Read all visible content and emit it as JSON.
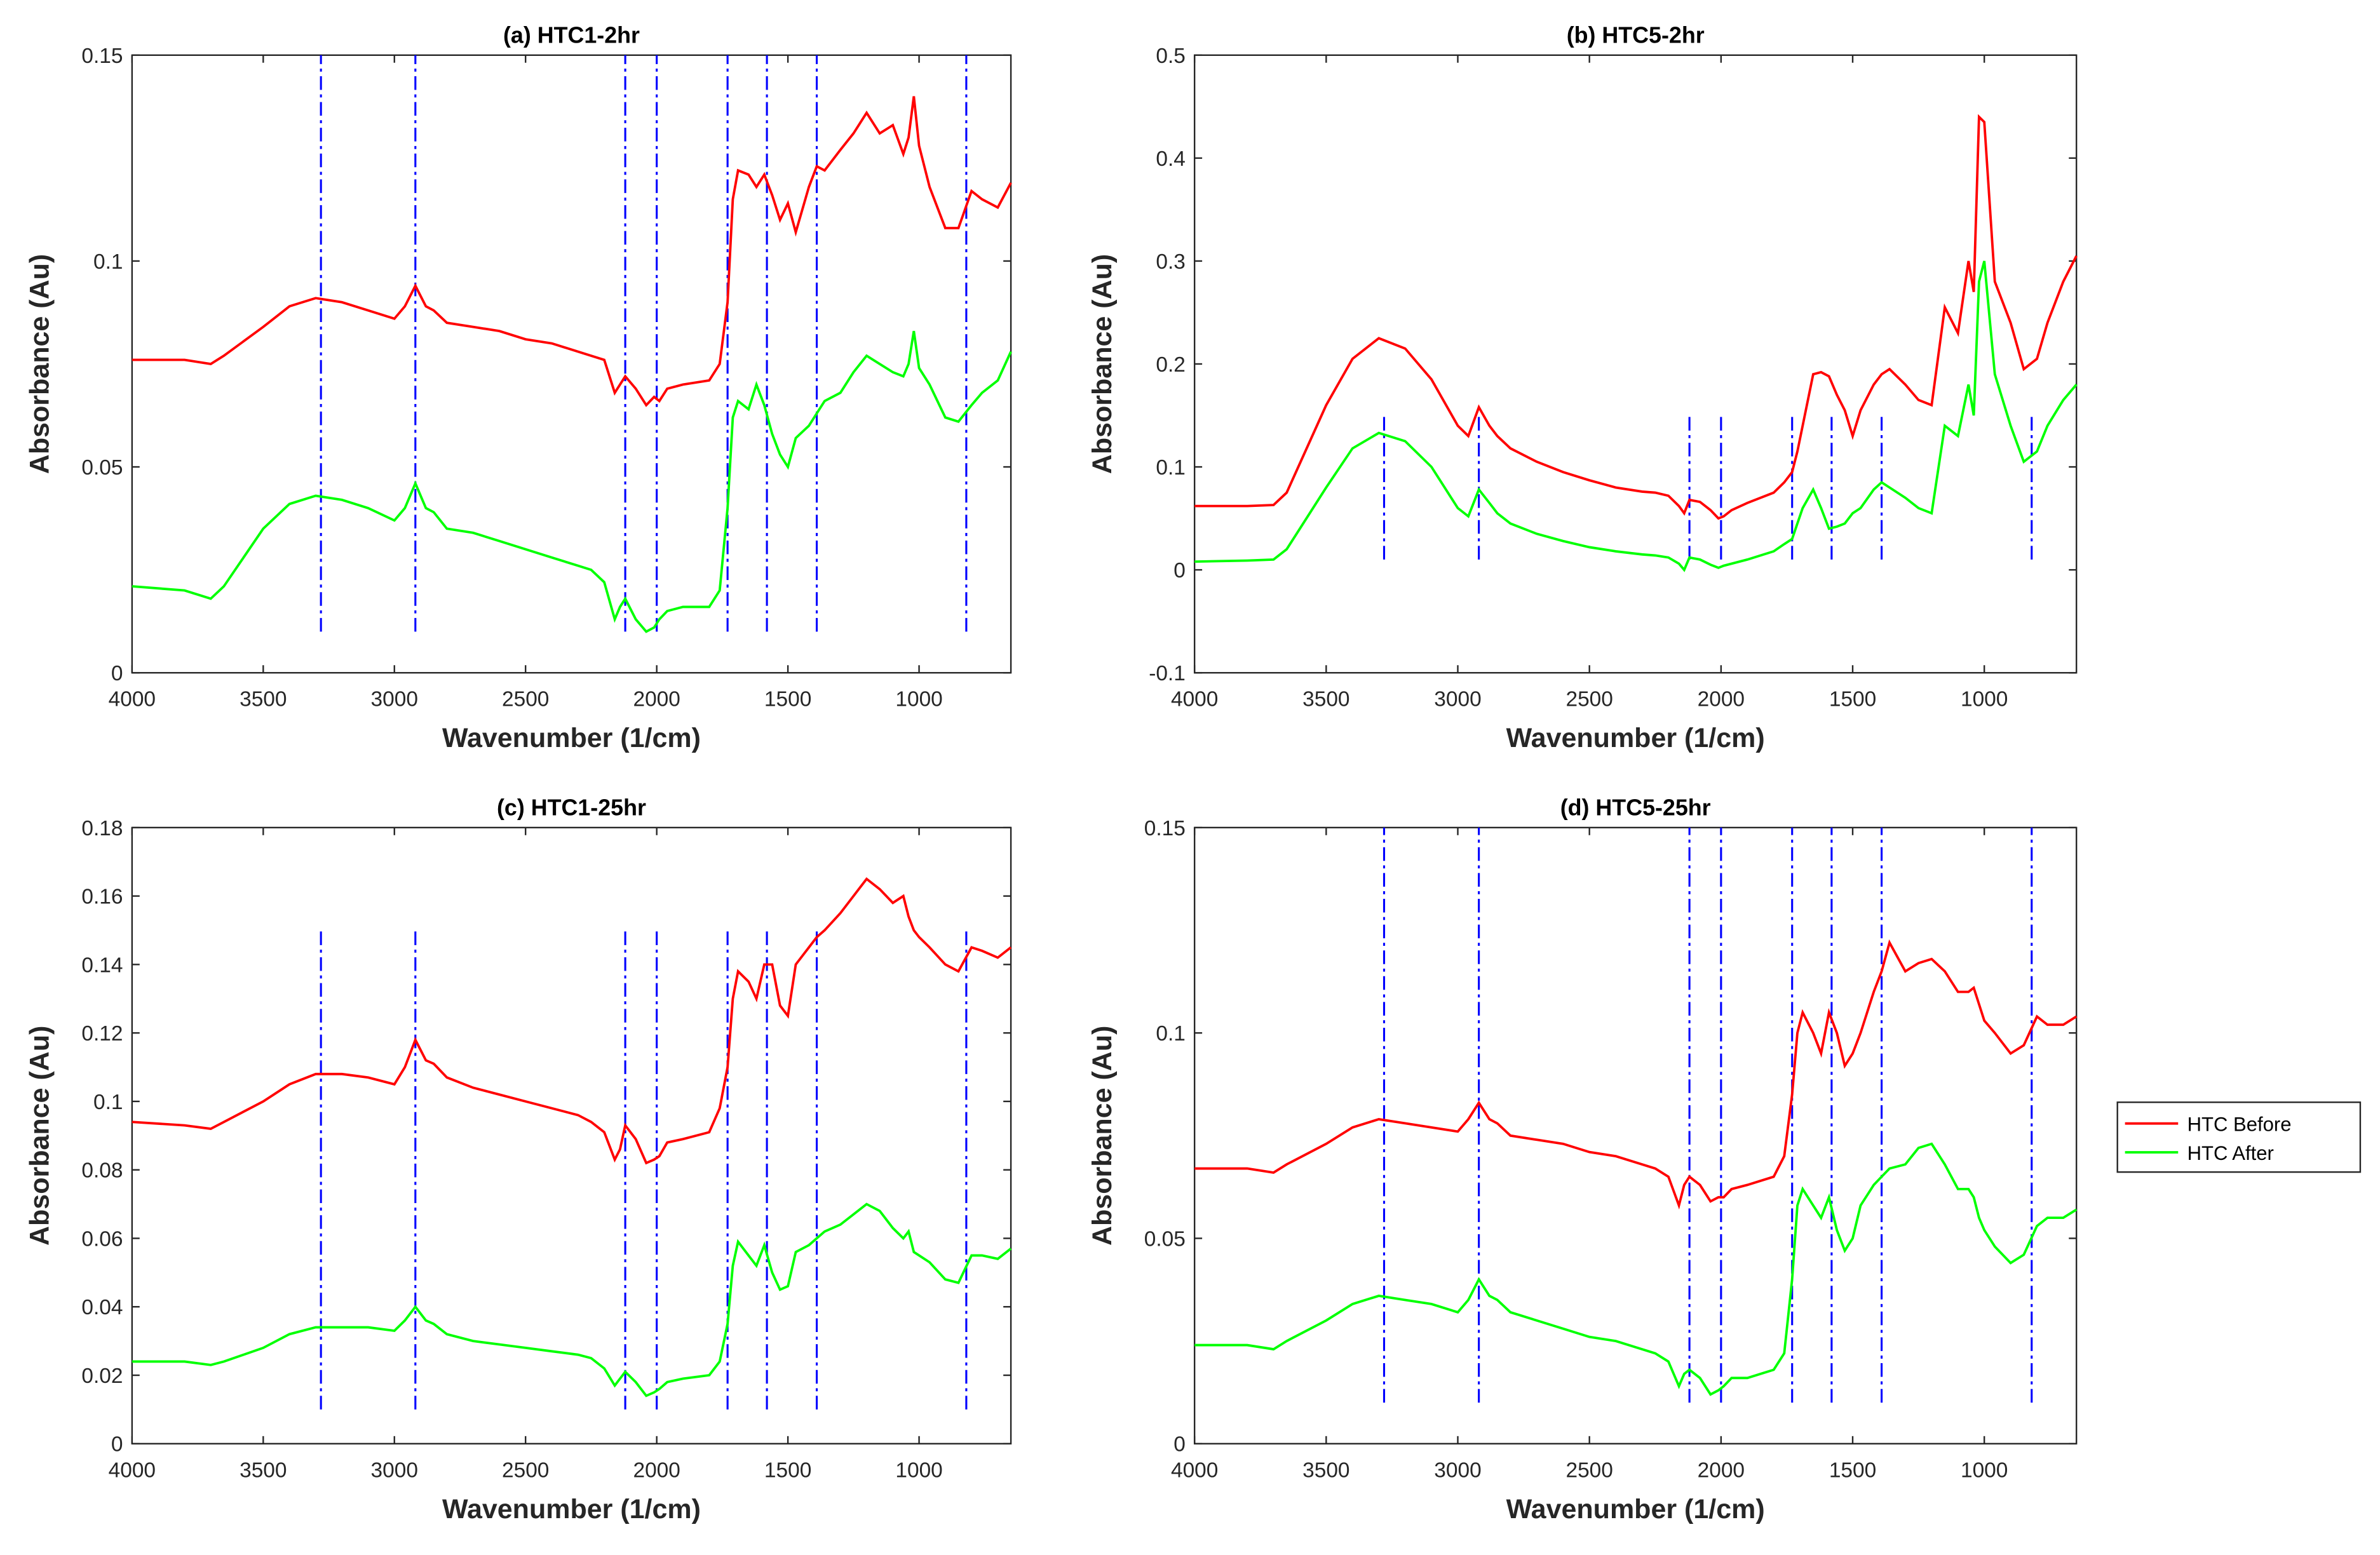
{
  "chart_data": [
    {
      "type": "line",
      "title": "(a) HTC1-2hr",
      "x_label": "Wavenumber (1/cm)",
      "y_label": "Absorbance (Au)",
      "x": [
        4000,
        3800,
        3700,
        3650,
        3500,
        3400,
        3300,
        3200,
        3100,
        3000,
        2960,
        2920,
        2880,
        2850,
        2800,
        2700,
        2600,
        2500,
        2400,
        2300,
        2250,
        2200,
        2160,
        2140,
        2120,
        2080,
        2040,
        2010,
        1990,
        1960,
        1900,
        1800,
        1760,
        1730,
        1710,
        1690,
        1650,
        1620,
        1590,
        1560,
        1530,
        1500,
        1470,
        1420,
        1390,
        1360,
        1300,
        1250,
        1200,
        1150,
        1100,
        1060,
        1040,
        1020,
        1000,
        960,
        900,
        850,
        800,
        760,
        700,
        650
      ],
      "series": [
        {
          "color": "#ff0000",
          "values": [
            0.076,
            0.076,
            0.075,
            0.077,
            0.084,
            0.089,
            0.091,
            0.09,
            0.088,
            0.086,
            0.089,
            0.094,
            0.089,
            0.088,
            0.085,
            0.084,
            0.083,
            0.081,
            0.08,
            0.078,
            0.077,
            0.076,
            0.068,
            0.07,
            0.072,
            0.069,
            0.065,
            0.067,
            0.066,
            0.069,
            0.07,
            0.071,
            0.075,
            0.09,
            0.115,
            0.122,
            0.121,
            0.118,
            0.121,
            0.116,
            0.11,
            0.114,
            0.107,
            0.118,
            0.123,
            0.122,
            0.127,
            0.131,
            0.136,
            0.131,
            0.133,
            0.126,
            0.13,
            0.14,
            0.128,
            0.118,
            0.108,
            0.108,
            0.117,
            0.115,
            0.113,
            0.119
          ]
        },
        {
          "color": "#00ff00",
          "values": [
            0.021,
            0.02,
            0.018,
            0.021,
            0.035,
            0.041,
            0.043,
            0.042,
            0.04,
            0.037,
            0.04,
            0.046,
            0.04,
            0.039,
            0.035,
            0.034,
            0.032,
            0.03,
            0.028,
            0.026,
            0.025,
            0.022,
            0.013,
            0.016,
            0.018,
            0.013,
            0.01,
            0.011,
            0.013,
            0.015,
            0.016,
            0.016,
            0.02,
            0.04,
            0.062,
            0.066,
            0.064,
            0.07,
            0.065,
            0.058,
            0.053,
            0.05,
            0.057,
            0.06,
            0.063,
            0.066,
            0.068,
            0.073,
            0.077,
            0.075,
            0.073,
            0.072,
            0.075,
            0.083,
            0.074,
            0.07,
            0.062,
            0.061,
            0.065,
            0.068,
            0.071,
            0.078
          ]
        }
      ],
      "vlines": [
        3280,
        2920,
        2120,
        2000,
        1730,
        1580,
        1390,
        820
      ],
      "vline_range": [
        0.01,
        0.15
      ],
      "vline_color": "#0000ff",
      "xlim": [
        4000,
        650
      ],
      "xticks": [
        4000,
        3500,
        3000,
        2500,
        2000,
        1500,
        1000
      ],
      "ylim": [
        0,
        0.15
      ],
      "yticks": [
        0,
        0.05,
        0.1,
        0.15
      ],
      "grid": false
    },
    {
      "type": "line",
      "title": "(b) HTC5-2hr",
      "x_label": "Wavenumber (1/cm)",
      "y_label": "Absorbance (Au)",
      "x": [
        4000,
        3800,
        3700,
        3650,
        3500,
        3400,
        3300,
        3200,
        3100,
        3000,
        2960,
        2920,
        2880,
        2850,
        2800,
        2700,
        2600,
        2500,
        2400,
        2300,
        2250,
        2200,
        2160,
        2140,
        2120,
        2080,
        2040,
        2010,
        1990,
        1960,
        1900,
        1800,
        1760,
        1730,
        1710,
        1690,
        1650,
        1620,
        1590,
        1560,
        1530,
        1500,
        1470,
        1420,
        1390,
        1360,
        1300,
        1250,
        1200,
        1150,
        1100,
        1060,
        1040,
        1020,
        1000,
        960,
        900,
        850,
        800,
        760,
        700,
        650
      ],
      "series": [
        {
          "color": "#ff0000",
          "values": [
            0.062,
            0.062,
            0.063,
            0.075,
            0.16,
            0.205,
            0.225,
            0.215,
            0.185,
            0.14,
            0.13,
            0.158,
            0.14,
            0.13,
            0.118,
            0.105,
            0.095,
            0.087,
            0.08,
            0.076,
            0.075,
            0.072,
            0.062,
            0.055,
            0.068,
            0.066,
            0.058,
            0.05,
            0.052,
            0.058,
            0.065,
            0.075,
            0.085,
            0.095,
            0.115,
            0.14,
            0.19,
            0.192,
            0.188,
            0.17,
            0.155,
            0.13,
            0.155,
            0.18,
            0.19,
            0.195,
            0.18,
            0.165,
            0.16,
            0.255,
            0.23,
            0.3,
            0.27,
            0.44,
            0.435,
            0.28,
            0.24,
            0.195,
            0.205,
            0.24,
            0.28,
            0.305
          ]
        },
        {
          "color": "#00ff00",
          "values": [
            0.008,
            0.009,
            0.01,
            0.02,
            0.08,
            0.118,
            0.133,
            0.125,
            0.1,
            0.06,
            0.052,
            0.078,
            0.065,
            0.055,
            0.045,
            0.035,
            0.028,
            0.022,
            0.018,
            0.015,
            0.014,
            0.012,
            0.006,
            0.0,
            0.012,
            0.01,
            0.005,
            0.002,
            0.004,
            0.006,
            0.01,
            0.018,
            0.025,
            0.03,
            0.045,
            0.06,
            0.078,
            0.06,
            0.04,
            0.042,
            0.045,
            0.055,
            0.06,
            0.078,
            0.085,
            0.08,
            0.07,
            0.06,
            0.055,
            0.14,
            0.13,
            0.18,
            0.15,
            0.28,
            0.3,
            0.19,
            0.14,
            0.105,
            0.115,
            0.14,
            0.165,
            0.18
          ]
        }
      ],
      "vlines": [
        3280,
        2920,
        2120,
        2000,
        1730,
        1580,
        1390,
        820
      ],
      "vline_range": [
        0.01,
        0.15
      ],
      "vline_color": "#0000ff",
      "xlim": [
        4000,
        650
      ],
      "xticks": [
        4000,
        3500,
        3000,
        2500,
        2000,
        1500,
        1000
      ],
      "ylim": [
        -0.1,
        0.5
      ],
      "yticks": [
        -0.1,
        0,
        0.1,
        0.2,
        0.3,
        0.4,
        0.5
      ],
      "grid": false
    },
    {
      "type": "line",
      "title": "(c) HTC1-25hr",
      "x_label": "Wavenumber (1/cm)",
      "y_label": "Absorbance (Au)",
      "x": [
        4000,
        3800,
        3700,
        3650,
        3500,
        3400,
        3300,
        3200,
        3100,
        3000,
        2960,
        2920,
        2880,
        2850,
        2800,
        2700,
        2600,
        2500,
        2400,
        2300,
        2250,
        2200,
        2160,
        2140,
        2120,
        2080,
        2040,
        2010,
        1990,
        1960,
        1900,
        1800,
        1760,
        1730,
        1710,
        1690,
        1650,
        1620,
        1590,
        1560,
        1530,
        1500,
        1470,
        1420,
        1390,
        1360,
        1300,
        1250,
        1200,
        1150,
        1100,
        1060,
        1040,
        1020,
        1000,
        960,
        900,
        850,
        800,
        760,
        700,
        650
      ],
      "series": [
        {
          "color": "#ff0000",
          "values": [
            0.094,
            0.093,
            0.092,
            0.094,
            0.1,
            0.105,
            0.108,
            0.108,
            0.107,
            0.105,
            0.11,
            0.118,
            0.112,
            0.111,
            0.107,
            0.104,
            0.102,
            0.1,
            0.098,
            0.096,
            0.094,
            0.091,
            0.083,
            0.086,
            0.093,
            0.089,
            0.082,
            0.083,
            0.084,
            0.088,
            0.089,
            0.091,
            0.098,
            0.11,
            0.13,
            0.138,
            0.135,
            0.13,
            0.14,
            0.14,
            0.128,
            0.125,
            0.14,
            0.145,
            0.148,
            0.15,
            0.155,
            0.16,
            0.165,
            0.162,
            0.158,
            0.16,
            0.154,
            0.15,
            0.148,
            0.145,
            0.14,
            0.138,
            0.145,
            0.144,
            0.142,
            0.145
          ]
        },
        {
          "color": "#00ff00",
          "values": [
            0.024,
            0.024,
            0.023,
            0.024,
            0.028,
            0.032,
            0.034,
            0.034,
            0.034,
            0.033,
            0.036,
            0.04,
            0.036,
            0.035,
            0.032,
            0.03,
            0.029,
            0.028,
            0.027,
            0.026,
            0.025,
            0.022,
            0.017,
            0.019,
            0.021,
            0.018,
            0.014,
            0.015,
            0.016,
            0.018,
            0.019,
            0.02,
            0.024,
            0.035,
            0.052,
            0.059,
            0.055,
            0.052,
            0.058,
            0.05,
            0.045,
            0.046,
            0.056,
            0.058,
            0.06,
            0.062,
            0.064,
            0.067,
            0.07,
            0.068,
            0.063,
            0.06,
            0.062,
            0.056,
            0.055,
            0.053,
            0.048,
            0.047,
            0.055,
            0.055,
            0.054,
            0.057
          ]
        }
      ],
      "vlines": [
        3280,
        2920,
        2120,
        2000,
        1730,
        1580,
        1390,
        820
      ],
      "vline_range": [
        0.01,
        0.15
      ],
      "vline_color": "#0000ff",
      "xlim": [
        4000,
        650
      ],
      "xticks": [
        4000,
        3500,
        3000,
        2500,
        2000,
        1500,
        1000
      ],
      "ylim": [
        0,
        0.18
      ],
      "yticks": [
        0,
        0.02,
        0.04,
        0.06,
        0.08,
        0.1,
        0.12,
        0.14,
        0.16,
        0.18
      ],
      "grid": false
    },
    {
      "type": "line",
      "title": "(d) HTC5-25hr",
      "x_label": "Wavenumber (1/cm)",
      "y_label": "Absorbance (Au)",
      "x": [
        4000,
        3800,
        3700,
        3650,
        3500,
        3400,
        3300,
        3200,
        3100,
        3000,
        2960,
        2920,
        2880,
        2850,
        2800,
        2700,
        2600,
        2500,
        2400,
        2300,
        2250,
        2200,
        2160,
        2140,
        2120,
        2080,
        2040,
        2010,
        1990,
        1960,
        1900,
        1800,
        1760,
        1730,
        1710,
        1690,
        1650,
        1620,
        1590,
        1560,
        1530,
        1500,
        1470,
        1420,
        1390,
        1360,
        1300,
        1250,
        1200,
        1150,
        1100,
        1060,
        1040,
        1020,
        1000,
        960,
        900,
        850,
        800,
        760,
        700,
        650
      ],
      "series": [
        {
          "name": "HTC Before",
          "color": "#ff0000",
          "values": [
            0.067,
            0.067,
            0.066,
            0.068,
            0.073,
            0.077,
            0.079,
            0.078,
            0.077,
            0.076,
            0.079,
            0.083,
            0.079,
            0.078,
            0.075,
            0.074,
            0.073,
            0.071,
            0.07,
            0.068,
            0.067,
            0.065,
            0.058,
            0.063,
            0.065,
            0.063,
            0.059,
            0.06,
            0.06,
            0.062,
            0.063,
            0.065,
            0.07,
            0.085,
            0.1,
            0.105,
            0.1,
            0.095,
            0.105,
            0.1,
            0.092,
            0.095,
            0.1,
            0.11,
            0.115,
            0.122,
            0.115,
            0.117,
            0.118,
            0.115,
            0.11,
            0.11,
            0.111,
            0.107,
            0.103,
            0.1,
            0.095,
            0.097,
            0.104,
            0.102,
            0.102,
            0.104
          ]
        },
        {
          "name": "HTC After",
          "color": "#00ff00",
          "values": [
            0.024,
            0.024,
            0.023,
            0.025,
            0.03,
            0.034,
            0.036,
            0.035,
            0.034,
            0.032,
            0.035,
            0.04,
            0.036,
            0.035,
            0.032,
            0.03,
            0.028,
            0.026,
            0.025,
            0.023,
            0.022,
            0.02,
            0.014,
            0.017,
            0.018,
            0.016,
            0.012,
            0.013,
            0.014,
            0.016,
            0.016,
            0.018,
            0.022,
            0.04,
            0.058,
            0.062,
            0.058,
            0.055,
            0.06,
            0.052,
            0.047,
            0.05,
            0.058,
            0.063,
            0.065,
            0.067,
            0.068,
            0.072,
            0.073,
            0.068,
            0.062,
            0.062,
            0.06,
            0.055,
            0.052,
            0.048,
            0.044,
            0.046,
            0.053,
            0.055,
            0.055,
            0.057
          ]
        }
      ],
      "vlines": [
        3280,
        2920,
        2120,
        2000,
        1730,
        1580,
        1390,
        820
      ],
      "vline_range": [
        0.01,
        0.15
      ],
      "vline_color": "#0000ff",
      "xlim": [
        4000,
        650
      ],
      "xticks": [
        4000,
        3500,
        3000,
        2500,
        2000,
        1500,
        1000
      ],
      "ylim": [
        0,
        0.15
      ],
      "yticks": [
        0,
        0.05,
        0.1,
        0.15
      ],
      "grid": false,
      "legend": "outside-right"
    }
  ]
}
